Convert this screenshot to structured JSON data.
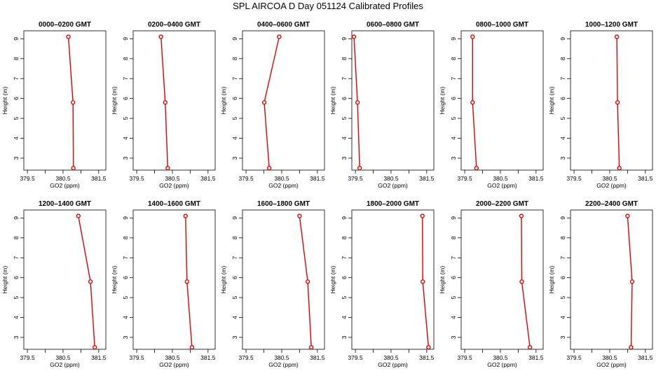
{
  "figure": {
    "title": "SPL AIRCOA D  Day 051124  Calibrated Profiles"
  },
  "style": {
    "line_color": "#dd0000",
    "axis_color": "#000000"
  },
  "chart_data": [
    {
      "type": "line",
      "title": "0000–0200 GMT",
      "xlabel": "GO2 (ppm)",
      "ylabel": "Height (m)",
      "xlim": [
        379.4,
        381.7
      ],
      "ylim": [
        2.4,
        9.4
      ],
      "xticks": [
        "379.5",
        "380.5",
        "381.5"
      ],
      "yticks": [
        "3",
        "4",
        "5",
        "6",
        "7",
        "8",
        "9"
      ],
      "x": [
        380.65,
        380.78,
        380.79
      ],
      "y": [
        9.1,
        5.8,
        2.5
      ]
    },
    {
      "type": "line",
      "title": "0200–0400 GMT",
      "xlabel": "GO2 (ppm)",
      "ylabel": "Height (m)",
      "xlim": [
        379.4,
        381.7
      ],
      "ylim": [
        2.4,
        9.4
      ],
      "xticks": [
        "379.5",
        "380.5",
        "381.5"
      ],
      "yticks": [
        "3",
        "4",
        "5",
        "6",
        "7",
        "8",
        "9"
      ],
      "x": [
        380.18,
        380.3,
        380.37
      ],
      "y": [
        9.1,
        5.8,
        2.5
      ]
    },
    {
      "type": "line",
      "title": "0400–0600 GMT",
      "xlabel": "GO2 (ppm)",
      "ylabel": "Height (m)",
      "xlim": [
        379.4,
        381.7
      ],
      "ylim": [
        2.4,
        9.4
      ],
      "xticks": [
        "379.5",
        "380.5",
        "381.5"
      ],
      "yticks": [
        "3",
        "4",
        "5",
        "6",
        "7",
        "8",
        "9"
      ],
      "x": [
        380.43,
        380.01,
        380.15
      ],
      "y": [
        9.1,
        5.8,
        2.5
      ]
    },
    {
      "type": "line",
      "title": "0600–0800 GMT",
      "xlabel": "GO2 (ppm)",
      "ylabel": "Height (m)",
      "xlim": [
        379.4,
        381.7
      ],
      "ylim": [
        2.4,
        9.4
      ],
      "xticks": [
        "379.5",
        "380.5",
        "381.5"
      ],
      "yticks": [
        "3",
        "4",
        "5",
        "6",
        "7",
        "8",
        "9"
      ],
      "x": [
        379.46,
        379.56,
        379.62
      ],
      "y": [
        9.1,
        5.8,
        2.5
      ]
    },
    {
      "type": "line",
      "title": "0800–1000 GMT",
      "xlabel": "GO2 (ppm)",
      "ylabel": "Height (m)",
      "xlim": [
        379.4,
        381.7
      ],
      "ylim": [
        2.4,
        9.4
      ],
      "xticks": [
        "379.5",
        "380.5",
        "381.5"
      ],
      "yticks": [
        "3",
        "4",
        "5",
        "6",
        "7",
        "8",
        "9"
      ],
      "x": [
        379.72,
        379.72,
        379.83
      ],
      "y": [
        9.1,
        5.8,
        2.5
      ]
    },
    {
      "type": "line",
      "title": "1000–1200 GMT",
      "xlabel": "GO2 (ppm)",
      "ylabel": "Height (m)",
      "xlim": [
        379.4,
        381.7
      ],
      "ylim": [
        2.4,
        9.4
      ],
      "xticks": [
        "379.5",
        "380.5",
        "381.5"
      ],
      "yticks": [
        "3",
        "4",
        "5",
        "6",
        "7",
        "8",
        "9"
      ],
      "x": [
        380.7,
        380.72,
        380.77
      ],
      "y": [
        9.1,
        5.8,
        2.5
      ]
    },
    {
      "type": "line",
      "title": "1200–1400 GMT",
      "xlabel": "GO2 (ppm)",
      "ylabel": "Height (m)",
      "xlim": [
        379.4,
        381.7
      ],
      "ylim": [
        2.4,
        9.4
      ],
      "xticks": [
        "379.5",
        "380.5",
        "381.5"
      ],
      "yticks": [
        "3",
        "4",
        "5",
        "6",
        "7",
        "8",
        "9"
      ],
      "x": [
        380.93,
        381.27,
        381.39
      ],
      "y": [
        9.1,
        5.8,
        2.5
      ]
    },
    {
      "type": "line",
      "title": "1400–1600 GMT",
      "xlabel": "GO2 (ppm)",
      "ylabel": "Height (m)",
      "xlim": [
        379.4,
        381.7
      ],
      "ylim": [
        2.4,
        9.4
      ],
      "xticks": [
        "379.5",
        "380.5",
        "381.5"
      ],
      "yticks": [
        "3",
        "4",
        "5",
        "6",
        "7",
        "8",
        "9"
      ],
      "x": [
        380.87,
        380.91,
        381.05
      ],
      "y": [
        9.1,
        5.8,
        2.5
      ]
    },
    {
      "type": "line",
      "title": "1600–1800 GMT",
      "xlabel": "GO2 (ppm)",
      "ylabel": "Height (m)",
      "xlim": [
        379.4,
        381.7
      ],
      "ylim": [
        2.4,
        9.4
      ],
      "xticks": [
        "379.5",
        "380.5",
        "381.5"
      ],
      "yticks": [
        "3",
        "4",
        "5",
        "6",
        "7",
        "8",
        "9"
      ],
      "x": [
        381.0,
        381.23,
        381.33
      ],
      "y": [
        9.1,
        5.8,
        2.5
      ]
    },
    {
      "type": "line",
      "title": "1800–2000 GMT",
      "xlabel": "GO2 (ppm)",
      "ylabel": "Height (m)",
      "xlim": [
        379.4,
        381.7
      ],
      "ylim": [
        2.4,
        9.4
      ],
      "xticks": [
        "379.5",
        "380.5",
        "381.5"
      ],
      "yticks": [
        "3",
        "4",
        "5",
        "6",
        "7",
        "8",
        "9"
      ],
      "x": [
        381.38,
        381.39,
        381.55
      ],
      "y": [
        9.1,
        5.8,
        2.5
      ]
    },
    {
      "type": "line",
      "title": "2000–2200 GMT",
      "xlabel": "GO2 (ppm)",
      "ylabel": "Height (m)",
      "xlim": [
        379.4,
        381.7
      ],
      "ylim": [
        2.4,
        9.4
      ],
      "xticks": [
        "379.5",
        "380.5",
        "381.5"
      ],
      "yticks": [
        "3",
        "4",
        "5",
        "6",
        "7",
        "8",
        "9"
      ],
      "x": [
        381.09,
        381.1,
        381.33
      ],
      "y": [
        9.1,
        5.8,
        2.5
      ]
    },
    {
      "type": "line",
      "title": "2200–2400 GMT",
      "xlabel": "GO2 (ppm)",
      "ylabel": "Height (m)",
      "xlim": [
        379.4,
        381.7
      ],
      "ylim": [
        2.4,
        9.4
      ],
      "xticks": [
        "379.5",
        "380.5",
        "381.5"
      ],
      "yticks": [
        "3",
        "4",
        "5",
        "6",
        "7",
        "8",
        "9"
      ],
      "x": [
        381.0,
        381.13,
        381.1
      ],
      "y": [
        9.1,
        5.8,
        2.5
      ]
    }
  ]
}
